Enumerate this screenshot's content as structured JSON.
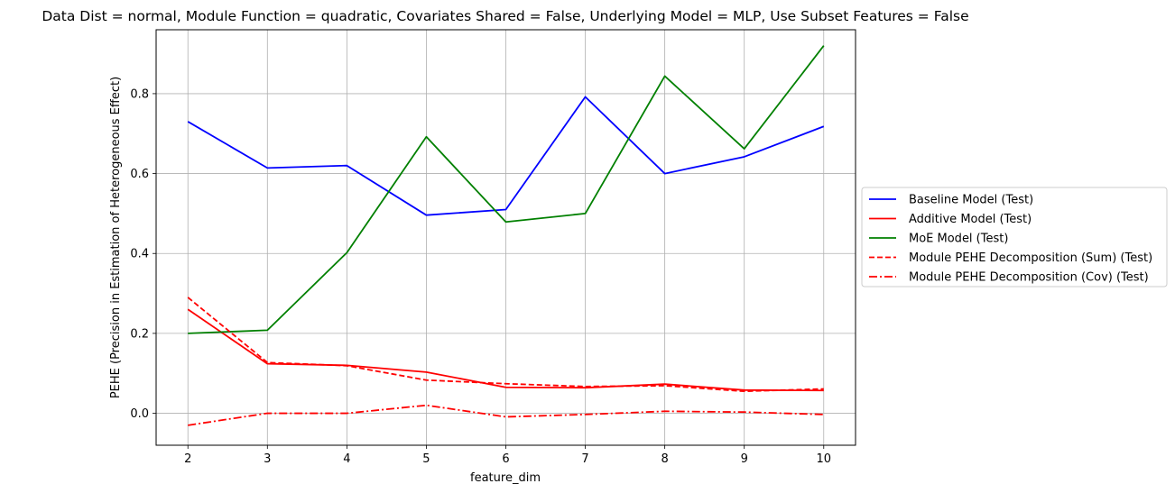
{
  "chart_data": {
    "type": "line",
    "title": "Data Dist = normal, Module Function = quadratic, Covariates Shared = False, Underlying Model = MLP, Use Subset Features = False",
    "xlabel": "feature_dim",
    "ylabel": "PEHE (Precision in Estimation of Heterogeneous Effect)",
    "x": [
      2,
      3,
      4,
      5,
      6,
      7,
      8,
      9,
      10
    ],
    "xlim": [
      1.6,
      10.4
    ],
    "ylim": [
      -0.08,
      0.96
    ],
    "xticks": [
      2,
      3,
      4,
      5,
      6,
      7,
      8,
      9,
      10
    ],
    "yticks": [
      0.0,
      0.2,
      0.4,
      0.6,
      0.8
    ],
    "ytick_labels": [
      "0.0",
      "0.2",
      "0.4",
      "0.6",
      "0.8"
    ],
    "grid": true,
    "legend_position": "outside right",
    "series": [
      {
        "name": "Baseline Model (Test)",
        "color": "#0000ff",
        "dash": "solid",
        "values": [
          0.73,
          0.614,
          0.62,
          0.496,
          0.51,
          0.792,
          0.6,
          0.642,
          0.718
        ]
      },
      {
        "name": "Additive Model (Test)",
        "color": "#ff0000",
        "dash": "solid",
        "values": [
          0.26,
          0.124,
          0.12,
          0.103,
          0.065,
          0.064,
          0.073,
          0.058,
          0.057
        ]
      },
      {
        "name": "MoE Model (Test)",
        "color": "#008000",
        "dash": "solid",
        "values": [
          0.2,
          0.208,
          0.402,
          0.692,
          0.479,
          0.5,
          0.844,
          0.662,
          0.92
        ]
      },
      {
        "name": "Module PEHE Decomposition (Sum) (Test)",
        "color": "#ff0000",
        "dash": "dashed",
        "values": [
          0.29,
          0.127,
          0.119,
          0.083,
          0.074,
          0.067,
          0.069,
          0.055,
          0.061
        ]
      },
      {
        "name": "Module PEHE Decomposition (Cov) (Test)",
        "color": "#ff0000",
        "dash": "dashdot",
        "values": [
          -0.03,
          0.0,
          0.0,
          0.02,
          -0.009,
          -0.003,
          0.005,
          0.003,
          -0.003
        ]
      }
    ]
  }
}
